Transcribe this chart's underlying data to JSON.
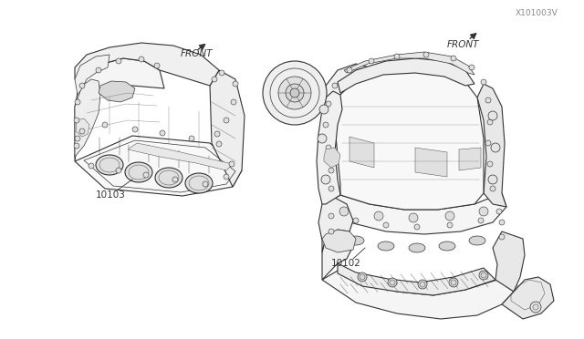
{
  "bg_color": "#ffffff",
  "fig_width": 6.4,
  "fig_height": 3.72,
  "dpi": 100,
  "label_10103": "10103",
  "label_10102": "10102",
  "label_front1": "FRONT",
  "label_front2": "FRONT",
  "ref_code": "X101003V",
  "text_color": "#333333",
  "line_color": "#333333",
  "lw_main": 0.8,
  "lw_detail": 0.5,
  "lw_thin": 0.3
}
